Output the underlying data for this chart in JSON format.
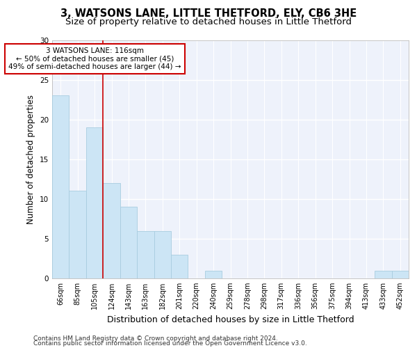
{
  "title_line1": "3, WATSONS LANE, LITTLE THETFORD, ELY, CB6 3HE",
  "title_line2": "Size of property relative to detached houses in Little Thetford",
  "xlabel": "Distribution of detached houses by size in Little Thetford",
  "ylabel": "Number of detached properties",
  "categories": [
    "66sqm",
    "85sqm",
    "105sqm",
    "124sqm",
    "143sqm",
    "163sqm",
    "182sqm",
    "201sqm",
    "220sqm",
    "240sqm",
    "259sqm",
    "278sqm",
    "298sqm",
    "317sqm",
    "336sqm",
    "356sqm",
    "375sqm",
    "394sqm",
    "413sqm",
    "433sqm",
    "452sqm"
  ],
  "values": [
    23,
    11,
    19,
    12,
    9,
    6,
    6,
    3,
    0,
    1,
    0,
    0,
    0,
    0,
    0,
    0,
    0,
    0,
    0,
    1,
    1
  ],
  "bar_color": "#cce5f5",
  "bar_edge_color": "#a8cce0",
  "bar_linewidth": 0.6,
  "vline_x": 2.5,
  "vline_color": "#cc0000",
  "vline_linewidth": 1.2,
  "annotation_text": "3 WATSONS LANE: 116sqm\n← 50% of detached houses are smaller (45)\n49% of semi-detached houses are larger (44) →",
  "annotation_box_color": "#ffffff",
  "annotation_box_edge_color": "#cc0000",
  "annotation_fontsize": 7.5,
  "ylim": [
    0,
    30
  ],
  "yticks": [
    0,
    5,
    10,
    15,
    20,
    25,
    30
  ],
  "background_color": "#eef2fb",
  "grid_color": "#ffffff",
  "title_fontsize": 10.5,
  "subtitle_fontsize": 9.5,
  "xlabel_fontsize": 9,
  "ylabel_fontsize": 8.5,
  "tick_fontsize": 7,
  "footer_line1": "Contains HM Land Registry data © Crown copyright and database right 2024.",
  "footer_line2": "Contains public sector information licensed under the Open Government Licence v3.0.",
  "footer_fontsize": 6.5
}
